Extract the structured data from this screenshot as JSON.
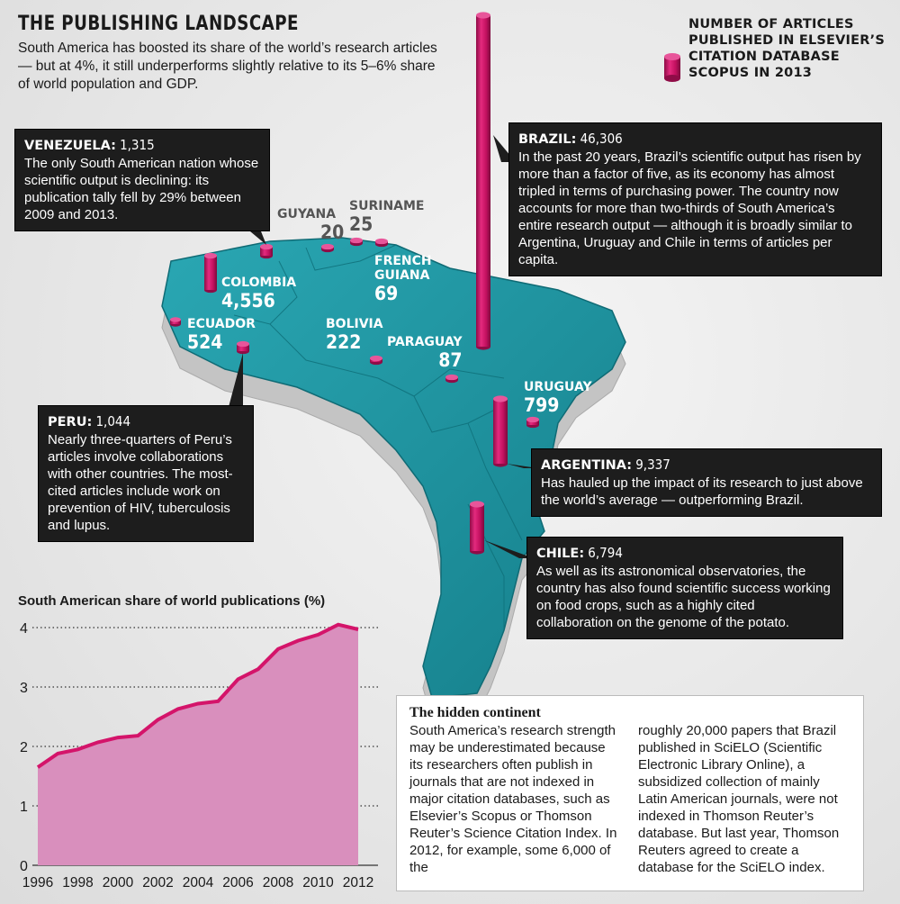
{
  "header": {
    "title": "THE PUBLISHING LANDSCAPE",
    "subtitle": "South America has boosted its share of the world’s research articles — but at 4%, it still underperforms slightly relative to its 5–6% share of world population and GDP."
  },
  "legend": {
    "text": "NUMBER OF ARTICLES PUBLISHED IN ELSEVIER’S CITATION DATABASE SCOPUS IN 2013",
    "color": "#d4146a"
  },
  "colors": {
    "land": "#1e9aa6",
    "land_side": "#c9c9c9",
    "cylinder": "#d4146a",
    "callout_bg": "#1d1d1d",
    "area_fill": "#d98fbd",
    "area_line": "#d4146a"
  },
  "countries": [
    {
      "name": "VENEZUELA",
      "value": "1,315"
    },
    {
      "name": "GUYANA",
      "value": "20"
    },
    {
      "name": "SURINAME",
      "value": "25"
    },
    {
      "name": "FRENCH GUIANA",
      "value": "69"
    },
    {
      "name": "COLOMBIA",
      "value": "4,556"
    },
    {
      "name": "ECUADOR",
      "value": "524"
    },
    {
      "name": "PERU",
      "value": "1,044"
    },
    {
      "name": "BOLIVIA",
      "value": "222"
    },
    {
      "name": "PARAGUAY",
      "value": "87"
    },
    {
      "name": "BRAZIL",
      "value": "46,306"
    },
    {
      "name": "URUGUAY",
      "value": "799"
    },
    {
      "name": "ARGENTINA",
      "value": "9,337"
    },
    {
      "name": "CHILE",
      "value": "6,794"
    }
  ],
  "labels": {
    "guyana": "GUYANA",
    "suriname": "SURINAME",
    "french_guiana_1": "FRENCH",
    "french_guiana_2": "GUIANA"
  },
  "callouts": {
    "venezuela": {
      "name": "VENEZUELA:",
      "value": "1,315",
      "text": "The only South American nation whose scientific output is declining: its publication tally fell by 29% between 2009 and 2013."
    },
    "brazil": {
      "name": "BRAZIL:",
      "value": "46,306",
      "text": "In the past 20 years, Brazil’s scientific output has risen by more than a factor of five, as its economy has almost tripled in terms of purchasing power. The country now accounts for more than two-thirds of South America’s entire research output — although it is broadly similar to Argentina, Uruguay and Chile in terms of articles per capita."
    },
    "peru": {
      "name": "PERU:",
      "value": "1,044",
      "text": "Nearly three-quarters of Peru’s articles involve collaborations with other countries. The most-cited articles include work on prevention of HIV, tuberculosis and lupus."
    },
    "argentina": {
      "name": "ARGENTINA:",
      "value": "9,337",
      "text": "Has hauled up the impact of its research to just above the world’s average — outperforming Brazil."
    },
    "chile": {
      "name": "CHILE:",
      "value": "6,794",
      "text": "As well as its astronomical observatories, the country has also found scientific success working on food crops, such as a highly cited collaboration on the genome of the potato."
    }
  },
  "hidden_continent": {
    "title": "The hidden continent",
    "col1": "South America’s research strength may be underestimated because its researchers often publish in journals that are not indexed in major citation databases, such as Elsevier’s Scopus or Thomson Reuter’s Science Citation Index. In 2012, for example, some 6,000 of the",
    "col2": "roughly 20,000 papers that Brazil published in SciELO (Scientific Electronic Library Online), a subsidized collection of mainly Latin American journals, were not indexed in Thomson Reuter’s database. But last year, Thomson Reuters agreed to create a database for the SciELO index."
  },
  "chart_data": {
    "type": "area",
    "title": "South American share of world publications (%)",
    "x": [
      1996,
      1997,
      1998,
      1999,
      2000,
      2001,
      2002,
      2003,
      2004,
      2005,
      2006,
      2007,
      2008,
      2009,
      2010,
      2011,
      2012
    ],
    "values": [
      1.65,
      1.88,
      1.95,
      2.07,
      2.15,
      2.18,
      2.45,
      2.63,
      2.72,
      2.76,
      3.13,
      3.3,
      3.64,
      3.78,
      3.88,
      4.05,
      3.97
    ],
    "xticks": [
      "1996",
      "1998",
      "2000",
      "2002",
      "2004",
      "2006",
      "2008",
      "2010",
      "2012"
    ],
    "yticks": [
      "0",
      "1",
      "2",
      "3",
      "4"
    ],
    "ylim": [
      0,
      4
    ],
    "grid": "horizontal dotted"
  }
}
